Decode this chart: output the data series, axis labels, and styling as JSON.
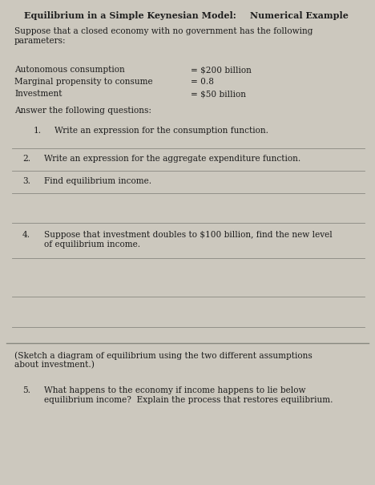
{
  "title_part1": "Equilibrium in a Simple Keynesian Model:",
  "title_part2": "  Numerical Example",
  "intro": "Suppose that a closed economy with no government has the following\nparameters:",
  "params_labels": [
    "Autonomous consumption",
    "Marginal propensity to consume",
    "Investment"
  ],
  "params_values": [
    "= $200 billion",
    "= 0.8",
    "= $50 billion"
  ],
  "answer_header": "Answer the following questions:",
  "questions": [
    {
      "num": "1.",
      "text": "Write an expression for the consumption function."
    },
    {
      "num": "2.",
      "text": "Write an expression for the aggregate expenditure function."
    },
    {
      "num": "3.",
      "text": "Find equilibrium income."
    },
    {
      "num": "4.",
      "text": "Suppose that investment doubles to $100 billion, find the new level\nof equilibrium income."
    },
    {
      "num": "5.",
      "text": "What happens to the economy if income happens to lie below\nequilibrium income?  Explain the process that restores equilibrium."
    }
  ],
  "sketch_note": "(Sketch a diagram of equilibrium using the two different assumptions\nabout investment.)",
  "bg_color": "#ccc8be",
  "text_color": "#1e1e1e",
  "line_color": "#888880",
  "title_fontsize": 8.0,
  "body_fontsize": 7.6
}
